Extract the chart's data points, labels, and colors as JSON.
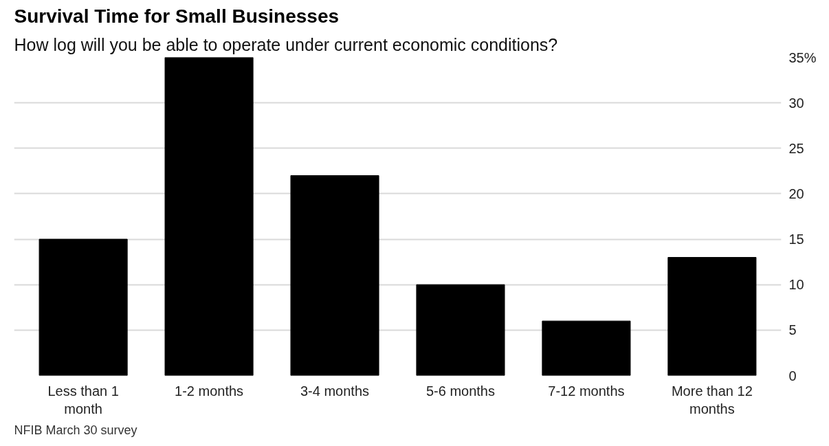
{
  "chart_data": {
    "type": "bar",
    "title": "Survival Time for Small Businesses",
    "subtitle": "How log will you be able to operate under current economic conditions?",
    "categories": [
      "Less than 1 month",
      "1-2 months",
      "3-4 months",
      "5-6 months",
      "7-12 months",
      "More than 12 months"
    ],
    "values": [
      15,
      35,
      22,
      10,
      6,
      13
    ],
    "color": "#000000",
    "ylim": [
      0,
      35
    ],
    "yticks": [
      0,
      5,
      10,
      15,
      20,
      25,
      30,
      {
        "value": 35,
        "label": "35%"
      }
    ],
    "grid": "y",
    "annotations": [
      "NFIB March 30 survey"
    ]
  }
}
